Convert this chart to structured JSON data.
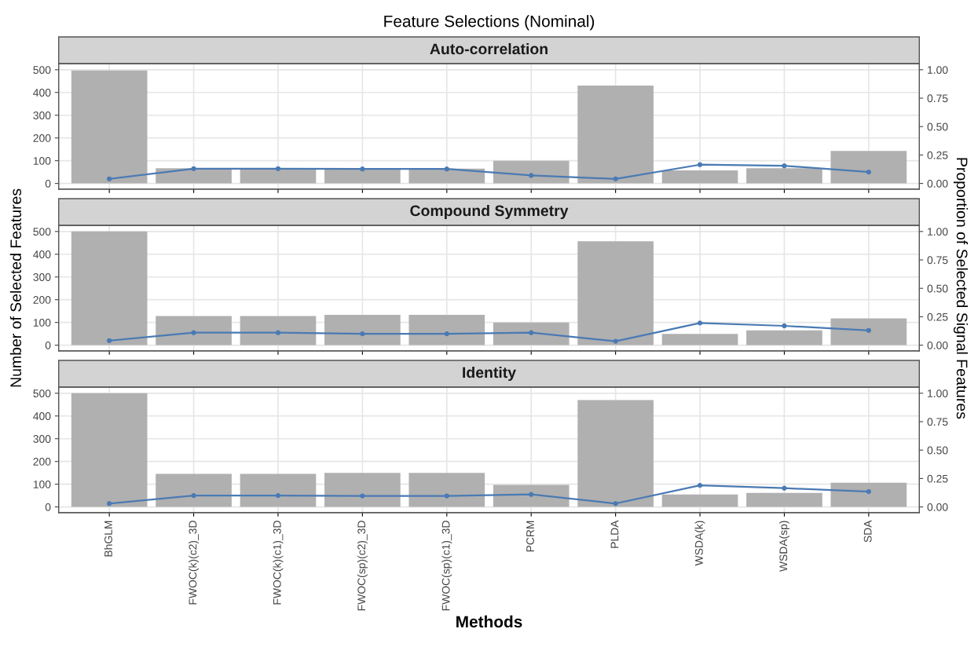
{
  "chart_data": [
    {
      "type": "bar",
      "title": "Auto-correlation",
      "annotations": [
        "Feature Selections (Nominal)"
      ],
      "categories": [
        null,
        null,
        null,
        null,
        null,
        null,
        null,
        null,
        null,
        null
      ],
      "series": [
        {
          "color": "#b0b0b0",
          "values": [
            497,
            67,
            65,
            63,
            65,
            100,
            430,
            57,
            67,
            143
          ]
        },
        {
          "type": "line",
          "axis": "y2",
          "color": "#4a7ab4",
          "values": [
            0.04,
            0.13,
            0.13,
            0.127,
            0.127,
            0.07,
            0.04,
            0.165,
            0.155,
            0.1
          ]
        }
      ],
      "ylim": [
        -25,
        527
      ],
      "yticks": [
        0,
        100,
        200,
        300,
        400,
        500
      ],
      "y2lim": [
        -0.05,
        1.054
      ],
      "y2ticks": [
        {
          "value": 0,
          "label": "0.00"
        },
        {
          "value": 0.25,
          "label": "0.25"
        },
        {
          "value": 0.5,
          "label": "0.50"
        },
        {
          "value": 0.75,
          "label": "0.75"
        },
        {
          "value": 1,
          "label": "1.00"
        }
      ],
      "grid": true,
      "marker": "circle",
      "line_style": "solid",
      "tick_labels": "y"
    },
    {
      "type": "bar",
      "title": "Compound Symmetry",
      "ylabel": "Number of Selected Features",
      "y2label": "Proportion of Selected Signal Features",
      "categories": [
        null,
        null,
        null,
        null,
        null,
        null,
        null,
        null,
        null,
        null
      ],
      "series": [
        {
          "color": "#b0b0b0",
          "values": [
            500,
            128,
            128,
            133,
            133,
            100,
            457,
            50,
            65,
            118
          ]
        },
        {
          "type": "line",
          "axis": "y2",
          "color": "#4a7ab4",
          "values": [
            0.04,
            0.11,
            0.11,
            0.1,
            0.1,
            0.11,
            0.035,
            0.195,
            0.17,
            0.13
          ]
        }
      ],
      "ylim": [
        -25,
        527
      ],
      "yticks": [
        0,
        100,
        200,
        300,
        400,
        500
      ],
      "y2lim": [
        -0.05,
        1.054
      ],
      "y2ticks": [
        {
          "value": 0,
          "label": "0.00"
        },
        {
          "value": 0.25,
          "label": "0.25"
        },
        {
          "value": 0.5,
          "label": "0.50"
        },
        {
          "value": 0.75,
          "label": "0.75"
        },
        {
          "value": 1,
          "label": "1.00"
        }
      ],
      "grid": true,
      "marker": "circle",
      "line_style": "solid",
      "tick_labels": "y"
    },
    {
      "type": "bar",
      "title": "Identity",
      "xlabel": "Methods",
      "categories": [
        "BhGLM",
        "FWOC(k)(c2)_3D",
        "FWOC(k)(c1)_3D",
        "FWOC(sp)(c2)_3D",
        "FWOC(sp)(c1)_3D",
        "PCRM",
        "PLDA",
        "WSDA(k)",
        "WSDA(sp)",
        "SDA"
      ],
      "series": [
        {
          "color": "#b0b0b0",
          "values": [
            500,
            145,
            145,
            150,
            150,
            97,
            470,
            55,
            62,
            107
          ]
        },
        {
          "type": "line",
          "axis": "y2",
          "color": "#4a7ab4",
          "values": [
            0.03,
            0.1,
            0.1,
            0.097,
            0.097,
            0.11,
            0.03,
            0.19,
            0.165,
            0.135
          ]
        }
      ],
      "ylim": [
        -25,
        527
      ],
      "yticks": [
        0,
        100,
        200,
        300,
        400,
        500
      ],
      "y2lim": [
        -0.05,
        1.054
      ],
      "y2ticks": [
        {
          "value": 0,
          "label": "0.00"
        },
        {
          "value": 0.25,
          "label": "0.25"
        },
        {
          "value": 0.5,
          "label": "0.50"
        },
        {
          "value": 0.75,
          "label": "0.75"
        },
        {
          "value": 1,
          "label": "1.00"
        }
      ],
      "grid": true,
      "marker": "circle",
      "line_style": "solid"
    }
  ]
}
